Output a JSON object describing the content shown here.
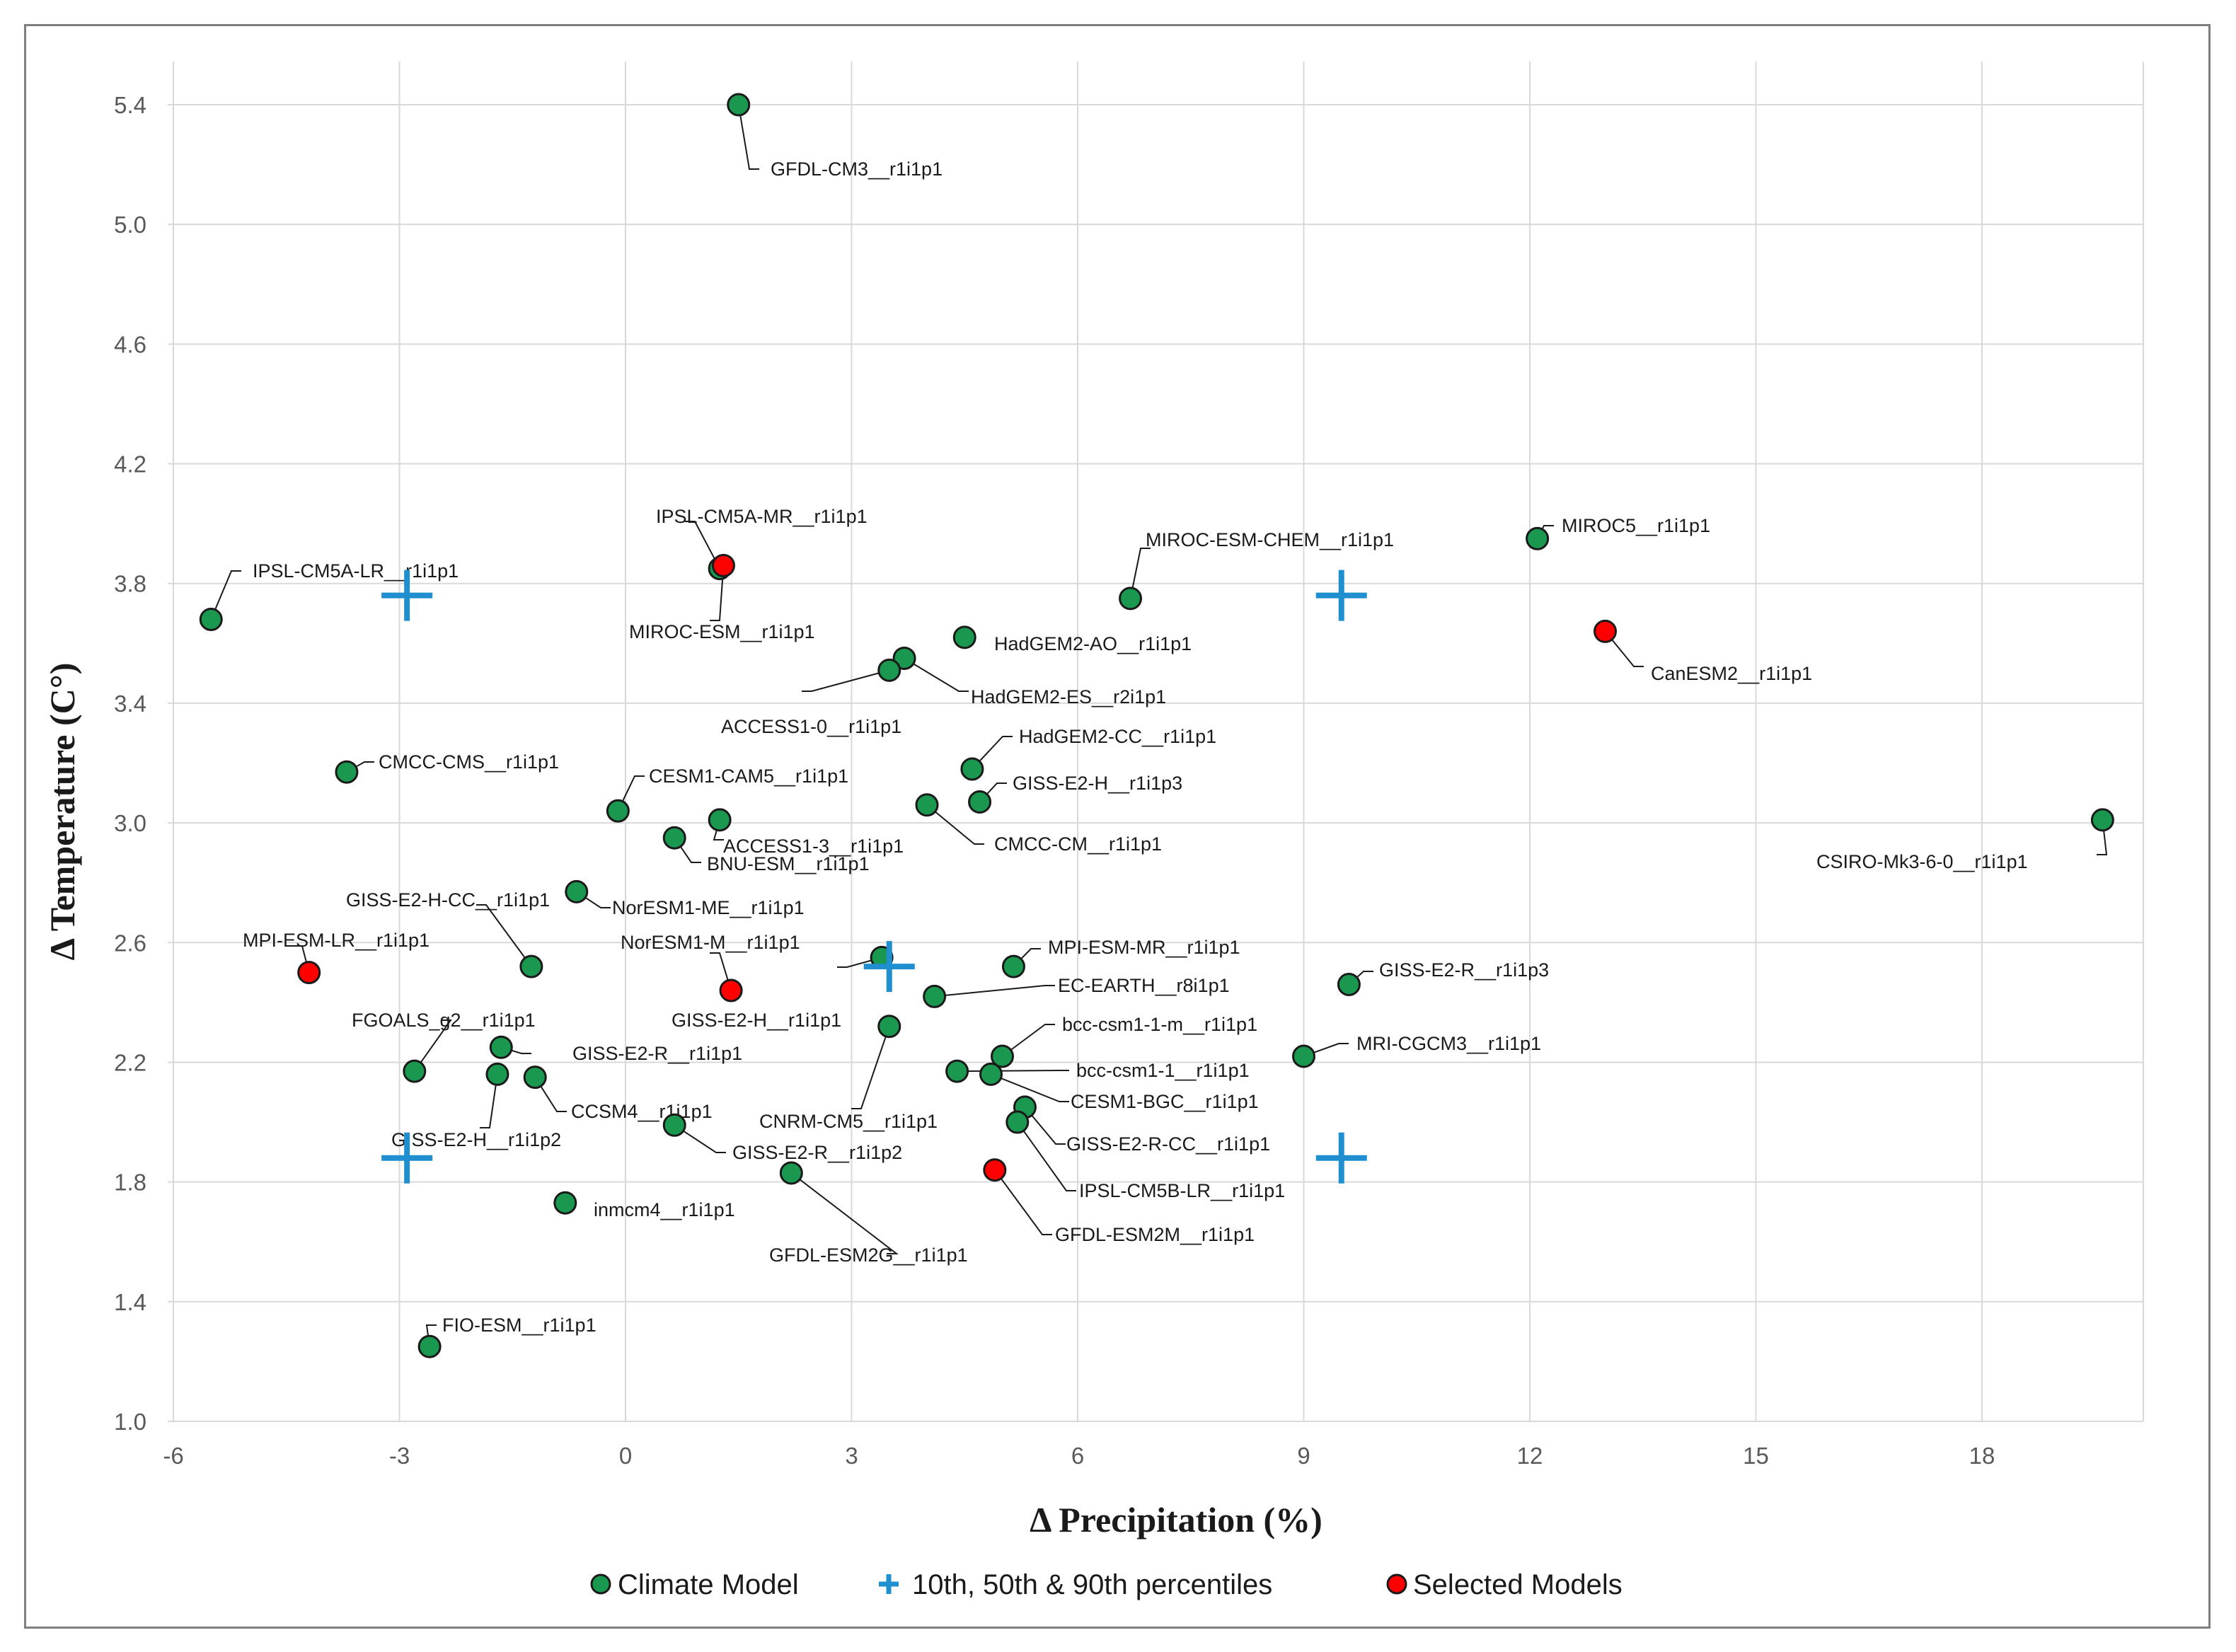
{
  "chart_data": {
    "type": "scatter",
    "title": "",
    "xlabel": "Δ Precipitation (%)",
    "ylabel": "Δ Temperature (C°)",
    "xlim": [
      -6,
      20
    ],
    "ylim": [
      1.0,
      5.6
    ],
    "x_ticks": [
      -6,
      -3,
      0,
      3,
      6,
      9,
      12,
      15,
      18
    ],
    "y_ticks": [
      1.0,
      1.4,
      1.8,
      2.2,
      2.6,
      3.0,
      3.4,
      3.8,
      4.2,
      4.6,
      5.0,
      5.4
    ],
    "x_tick_labels": [
      "-6",
      "-3",
      "0",
      "3",
      "6",
      "9",
      "12",
      "15",
      "18"
    ],
    "y_tick_labels": [
      "1.0",
      "1.4",
      "1.8",
      "2.2",
      "2.6",
      "3.0",
      "3.4",
      "3.8",
      "4.2",
      "4.6",
      "5.0",
      "5.4"
    ],
    "grid": true,
    "legend_position": "bottom",
    "colors": {
      "climate_model": "#1a9850",
      "selected_model": "#ff0000",
      "percentile": "#1f8fcf",
      "grid": "#d9d9d9",
      "marker_edge": "#1a1a1a"
    },
    "legend": [
      {
        "key": "climate",
        "label": "Climate Model"
      },
      {
        "key": "percentile",
        "label": "10th, 50th & 90th percentiles"
      },
      {
        "key": "selected",
        "label": "Selected Models"
      }
    ],
    "percentiles": [
      {
        "x": -2.9,
        "y": 3.76
      },
      {
        "x": 9.5,
        "y": 3.76
      },
      {
        "x": 3.5,
        "y": 2.52
      },
      {
        "x": -2.9,
        "y": 1.88
      },
      {
        "x": 9.5,
        "y": 1.88
      }
    ],
    "points": [
      {
        "name": "GFDL-CM3__r1i1p1",
        "x": 1.5,
        "y": 5.4,
        "selected": false
      },
      {
        "name": "IPSL-CM5A-LR__r1i1p1",
        "x": -5.5,
        "y": 3.68,
        "selected": false
      },
      {
        "name": "IPSL-CM5A-MR__r1i1p1",
        "x": 1.25,
        "y": 3.85,
        "selected": false
      },
      {
        "name": "MIROC-ESM__r1i1p1",
        "x": 1.3,
        "y": 3.86,
        "selected": true
      },
      {
        "name": "MIROC-ESM-CHEM__r1i1p1",
        "x": 6.7,
        "y": 3.75,
        "selected": false
      },
      {
        "name": "MIROC5__r1i1p1",
        "x": 12.1,
        "y": 3.95,
        "selected": false
      },
      {
        "name": "CanESM2__r1i1p1",
        "x": 13.0,
        "y": 3.64,
        "selected": true
      },
      {
        "name": "HadGEM2-AO__r1i1p1",
        "x": 4.5,
        "y": 3.62,
        "selected": false
      },
      {
        "name": "HadGEM2-ES__r2i1p1",
        "x": 3.7,
        "y": 3.55,
        "selected": false
      },
      {
        "name": "ACCESS1-0__r1i1p1",
        "x": 3.5,
        "y": 3.51,
        "selected": false
      },
      {
        "name": "HadGEM2-CC__r1i1p1",
        "x": 4.6,
        "y": 3.18,
        "selected": false
      },
      {
        "name": "GISS-E2-H__r1i1p3",
        "x": 4.7,
        "y": 3.07,
        "selected": false
      },
      {
        "name": "CMCC-CMS__r1i1p1",
        "x": -3.7,
        "y": 3.17,
        "selected": false
      },
      {
        "name": "CESM1-CAM5__r1i1p1",
        "x": -0.1,
        "y": 3.04,
        "selected": false
      },
      {
        "name": "ACCESS1-3__r1i1p1",
        "x": 1.25,
        "y": 3.01,
        "selected": false
      },
      {
        "name": "BNU-ESM__r1i1p1",
        "x": 0.65,
        "y": 2.95,
        "selected": false
      },
      {
        "name": "CMCC-CM__r1i1p1",
        "x": 4.0,
        "y": 3.06,
        "selected": false
      },
      {
        "name": "CSIRO-Mk3-6-0__r1i1p1",
        "x": 19.6,
        "y": 3.01,
        "selected": false
      },
      {
        "name": "GISS-E2-H-CC__r1i1p1",
        "x": -1.25,
        "y": 2.52,
        "selected": false
      },
      {
        "name": "NorESM1-ME__r1i1p1",
        "x": -0.65,
        "y": 2.77,
        "selected": false
      },
      {
        "name": "MPI-ESM-LR__r1i1p1",
        "x": -4.2,
        "y": 2.5,
        "selected": true
      },
      {
        "name": "NorESM1-M__r1i1p1",
        "x": 1.4,
        "y": 2.44,
        "selected": true
      },
      {
        "name": "GISS-E2-H__r1i1p1",
        "x": 3.4,
        "y": 2.55,
        "selected": false
      },
      {
        "name": "MPI-ESM-MR__r1i1p1",
        "x": 5.15,
        "y": 2.52,
        "selected": false
      },
      {
        "name": "EC-EARTH__r8i1p1",
        "x": 4.1,
        "y": 2.42,
        "selected": false
      },
      {
        "name": "GISS-E2-R__r1i1p3",
        "x": 9.6,
        "y": 2.46,
        "selected": false
      },
      {
        "name": "FGOALS_g2__r1i1p1",
        "x": -2.8,
        "y": 2.17,
        "selected": false
      },
      {
        "name": "GISS-E2-R__r1i1p1",
        "x": -1.65,
        "y": 2.25,
        "selected": false
      },
      {
        "name": "GISS-E2-H__r1i1p2",
        "x": -1.7,
        "y": 2.16,
        "selected": false
      },
      {
        "name": "CCSM4__r1i1p1",
        "x": -1.2,
        "y": 2.15,
        "selected": false
      },
      {
        "name": "GISS-E2-R__r1i1p2",
        "x": 0.65,
        "y": 1.99,
        "selected": false
      },
      {
        "name": "CNRM-CM5__r1i1p1",
        "x": 3.5,
        "y": 2.32,
        "selected": false
      },
      {
        "name": "bcc-csm1-1-m__r1i1p1",
        "x": 5.0,
        "y": 2.22,
        "selected": false
      },
      {
        "name": "bcc-csm1-1__r1i1p1",
        "x": 4.4,
        "y": 2.17,
        "selected": false
      },
      {
        "name": "CESM1-BGC__r1i1p1",
        "x": 4.85,
        "y": 2.16,
        "selected": false
      },
      {
        "name": "MRI-CGCM3__r1i1p1",
        "x": 9.0,
        "y": 2.22,
        "selected": false
      },
      {
        "name": "GISS-E2-R-CC__r1i1p1",
        "x": 5.3,
        "y": 2.05,
        "selected": false
      },
      {
        "name": "IPSL-CM5B-LR__r1i1p1",
        "x": 5.2,
        "y": 2.0,
        "selected": false
      },
      {
        "name": "GFDL-ESM2M__r1i1p1",
        "x": 4.9,
        "y": 1.84,
        "selected": true
      },
      {
        "name": "GFDL-ESM2G__r1i1p1",
        "x": 2.2,
        "y": 1.83,
        "selected": false
      },
      {
        "name": "inmcm4__r1i1p1",
        "x": -0.8,
        "y": 1.73,
        "selected": false
      },
      {
        "name": "FIO-ESM__r1i1p1",
        "x": -2.6,
        "y": 1.25,
        "selected": false
      }
    ]
  }
}
